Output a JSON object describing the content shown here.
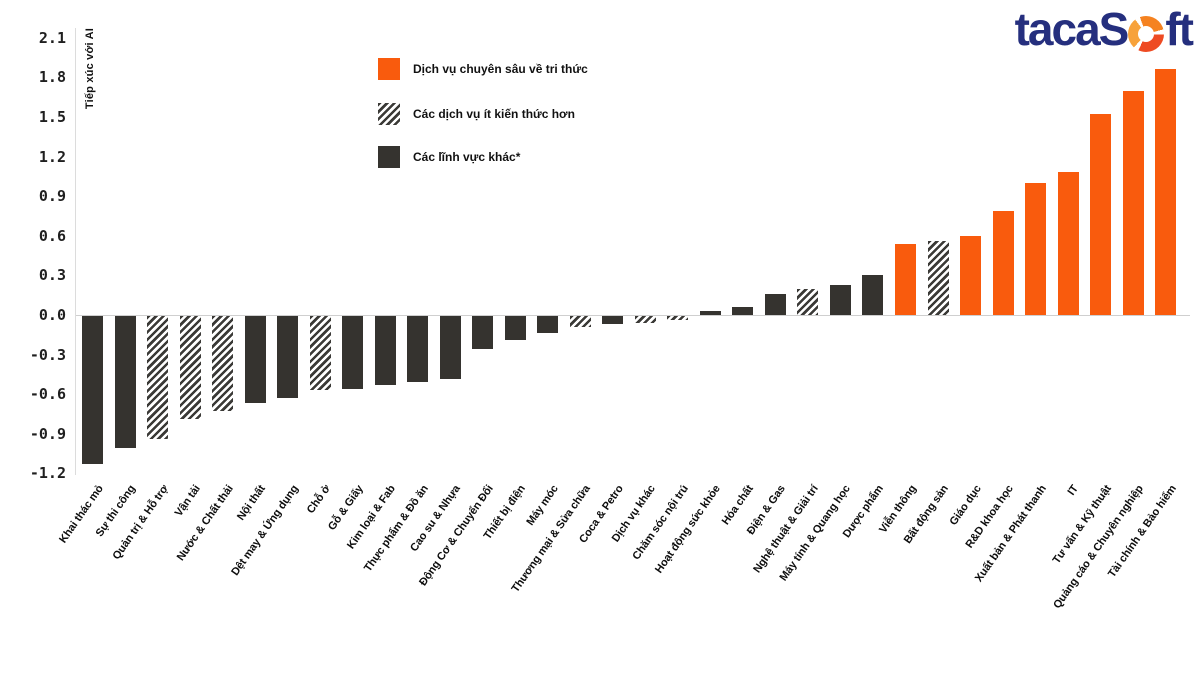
{
  "logo": {
    "prefix": "tacaS",
    "suffix": "ft"
  },
  "colors": {
    "knowledge": "#F95B0D",
    "less_hatch_dark": "#3B3A37",
    "other": "#35332F",
    "axis_line": "#DCDCDC",
    "zero_line": "#CFCFCF",
    "logo_navy": "#252F7E",
    "logo_orange": "#F26522"
  },
  "chart_data": {
    "type": "bar",
    "title": "",
    "ylabel": "Tiếp xúc với AI",
    "xlabel": "",
    "ylim": [
      -1.2,
      2.1
    ],
    "yticks": [
      2.1,
      1.8,
      1.5,
      1.2,
      0.9,
      0.6,
      0.3,
      0.0,
      -0.3,
      -0.6,
      -0.9,
      -1.2
    ],
    "grid": false,
    "legend_position": "upper-left-inside",
    "legend": [
      {
        "label": "Dịch vụ chuyên sâu về tri thức",
        "style": "knowledge"
      },
      {
        "label": "Các dịch vụ ít kiến thức hơn",
        "style": "less"
      },
      {
        "label": "Các lĩnh vực khác*",
        "style": "other"
      }
    ],
    "bars": [
      {
        "label": "Khai thác mỏ",
        "value": -1.12,
        "group": "other"
      },
      {
        "label": "Sự thi công",
        "value": -1.0,
        "group": "other"
      },
      {
        "label": "Quản trị & Hỗ trợ",
        "value": -0.93,
        "group": "less"
      },
      {
        "label": "Vận tải",
        "value": -0.78,
        "group": "less"
      },
      {
        "label": "Nước & Chất thải",
        "value": -0.72,
        "group": "less"
      },
      {
        "label": "Nội thất",
        "value": -0.66,
        "group": "other"
      },
      {
        "label": "Dệt may & Ứng dụng",
        "value": -0.62,
        "group": "other"
      },
      {
        "label": "Chỗ ở",
        "value": -0.56,
        "group": "less"
      },
      {
        "label": "Gỗ & Giấy",
        "value": -0.55,
        "group": "other"
      },
      {
        "label": "Kim loại & Fab",
        "value": -0.52,
        "group": "other"
      },
      {
        "label": "Thực phẩm & Đồ ăn",
        "value": -0.5,
        "group": "other"
      },
      {
        "label": "Cao su & Nhựa",
        "value": -0.48,
        "group": "other"
      },
      {
        "label": "Động Cơ & Chuyển Đổi",
        "value": -0.25,
        "group": "other"
      },
      {
        "label": "Thiết bị điện",
        "value": -0.18,
        "group": "other"
      },
      {
        "label": "Máy móc",
        "value": -0.13,
        "group": "other"
      },
      {
        "label": "Thương mại & Sửa chữa",
        "value": -0.08,
        "group": "less"
      },
      {
        "label": "Coca & Petro",
        "value": -0.06,
        "group": "other"
      },
      {
        "label": "Dịch vụ khác",
        "value": -0.05,
        "group": "less"
      },
      {
        "label": "Chăm sóc nội trú",
        "value": -0.03,
        "group": "less"
      },
      {
        "label": "Hoạt động sức khỏe",
        "value": 0.03,
        "group": "other"
      },
      {
        "label": "Hóa chất",
        "value": 0.06,
        "group": "other"
      },
      {
        "label": "Điện & Gas",
        "value": 0.16,
        "group": "other"
      },
      {
        "label": "Nghệ thuật & Giải trí",
        "value": 0.2,
        "group": "less"
      },
      {
        "label": "Máy tính & Quang học",
        "value": 0.23,
        "group": "other"
      },
      {
        "label": "Dược phẩm",
        "value": 0.3,
        "group": "other"
      },
      {
        "label": "Viễn thông",
        "value": 0.54,
        "group": "knowledge"
      },
      {
        "label": "Bất động sản",
        "value": 0.56,
        "group": "less"
      },
      {
        "label": "Giáo dục",
        "value": 0.6,
        "group": "knowledge"
      },
      {
        "label": "R&D khoa học",
        "value": 0.79,
        "group": "knowledge"
      },
      {
        "label": "Xuất bản & Phát thanh",
        "value": 1.0,
        "group": "knowledge"
      },
      {
        "label": "IT",
        "value": 1.08,
        "group": "knowledge"
      },
      {
        "label": "Tư vấn & Kỹ thuật",
        "value": 1.52,
        "group": "knowledge"
      },
      {
        "label": "Quảng cáo & Chuyên nghiệp",
        "value": 1.7,
        "group": "knowledge"
      },
      {
        "label": "Tài chính & Bảo hiểm",
        "value": 1.86,
        "group": "knowledge"
      }
    ]
  }
}
